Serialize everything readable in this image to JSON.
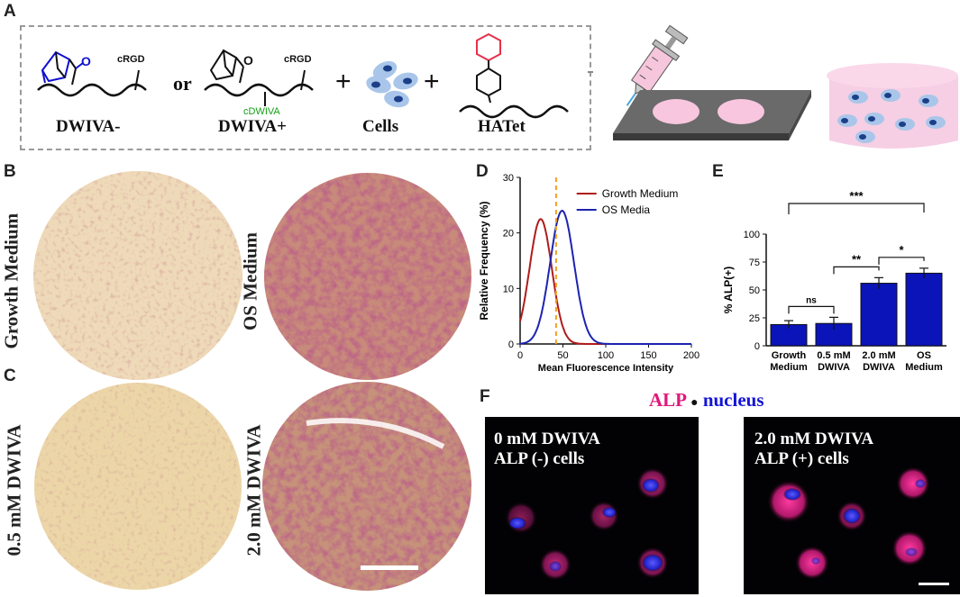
{
  "panels": {
    "A": "A",
    "B": "B",
    "C": "C",
    "D": "D",
    "E": "E",
    "F": "F"
  },
  "panelA": {
    "molecule1_label": "DWIVA-",
    "molecule2_label": "DWIVA+",
    "or_text": "or",
    "cRGD_1": "cRGD",
    "cRGD_2": "cRGD",
    "cDWIVA": "cDWIVA",
    "plus1": "+",
    "plus2": "+",
    "cells_label": "Cells",
    "hatet_label": "HATet"
  },
  "panelB": {
    "left_label": "Growth Medium",
    "right_label": "OS Medium"
  },
  "panelC": {
    "left_label": "0.5 mM DWIVA",
    "right_label": "2.0 mM DWIVA"
  },
  "chart_data": [
    {
      "type": "line",
      "panel": "D",
      "xlabel": "Mean Fluorescence Intensity",
      "ylabel": "Relative Frequency (%)",
      "xlim": [
        0,
        200
      ],
      "ylim": [
        0,
        30
      ],
      "xticks": [
        0,
        50,
        100,
        150,
        200
      ],
      "yticks": [
        0,
        10,
        20,
        30
      ],
      "threshold_x": 42,
      "legend_position": "top-right",
      "series": [
        {
          "name": "Growth Medium",
          "color": "#b01c1c",
          "mean": 24,
          "sd": 13,
          "peak": 22.5
        },
        {
          "name": "OS Media",
          "color": "#1c24b0",
          "mean": 49,
          "sd": 14,
          "peak": 24
        }
      ]
    },
    {
      "type": "bar",
      "panel": "E",
      "ylabel": "% ALP(+)",
      "ylim": [
        0,
        100
      ],
      "yticks": [
        0,
        25,
        50,
        75,
        100
      ],
      "categories": [
        [
          "Growth",
          "Medium"
        ],
        [
          "0.5 mM",
          "DWIVA"
        ],
        [
          "2.0 mM",
          "DWIVA"
        ],
        [
          "OS",
          "Medium"
        ]
      ],
      "values": [
        19,
        20,
        56,
        65
      ],
      "errors": [
        3.5,
        5.5,
        5,
        4.5
      ],
      "bar_color": "#0a14b8",
      "significance": [
        {
          "from": 0,
          "to": 1,
          "label": "ns"
        },
        {
          "from": 1,
          "to": 2,
          "label": "**"
        },
        {
          "from": 2,
          "to": 3,
          "label": "*"
        },
        {
          "from": 0,
          "to": 3,
          "label": "***"
        }
      ]
    }
  ],
  "panelF": {
    "title_alp": "ALP",
    "title_dot": "●",
    "title_nucleus": "nucleus",
    "left_line1": "0 mM DWIVA",
    "left_line2": "ALP (-) cells",
    "right_line1": "2.0 mM DWIVA",
    "right_line2": "ALP (+) cells"
  }
}
